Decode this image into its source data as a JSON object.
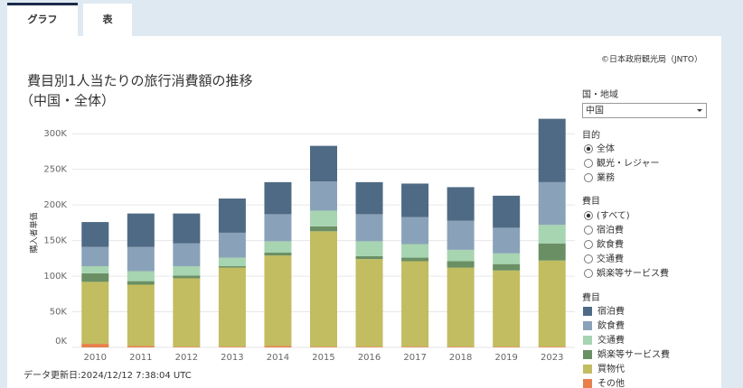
{
  "tabs": [
    "グラフ",
    "表"
  ],
  "copyright": "©日本政府観光局（JNTO）",
  "updated": "データ更新日:2024/12/12 7:38:04 UTC",
  "filters": {
    "region": {
      "label": "国・地域",
      "selected": "中国"
    },
    "purpose": {
      "label": "目的",
      "options": [
        "全体",
        "観光・レジャー",
        "業務"
      ],
      "selected_index": 0
    },
    "item": {
      "label": "費目",
      "options": [
        "(すべて)",
        "宿泊費",
        "飲食費",
        "交通費",
        "娯楽等サービス費",
        "買物代"
      ],
      "selected_index": 0
    }
  },
  "legend_title": "費目",
  "chart_data": {
    "type": "bar",
    "stacked": true,
    "title": "費目別1人当たりの旅行消費額の推移",
    "subtitle": "（中国・全体）",
    "y_label": "購入者単価",
    "categories": [
      "2010",
      "2011",
      "2012",
      "2013",
      "2014",
      "2015",
      "2016",
      "2017",
      "2018",
      "2019",
      "2023"
    ],
    "ylim": [
      0,
      318000
    ],
    "yticks": [
      {
        "value": 0,
        "label": "0K"
      },
      {
        "value": 50000,
        "label": "50K"
      },
      {
        "value": 100000,
        "label": "100K"
      },
      {
        "value": 150000,
        "label": "150K"
      },
      {
        "value": 200000,
        "label": "200K"
      },
      {
        "value": 250000,
        "label": "250K"
      },
      {
        "value": 300000,
        "label": "300K"
      }
    ],
    "grid": true,
    "series": [
      {
        "name": "宿泊費",
        "color": "#4f6a84",
        "values": [
          35000,
          47000,
          42000,
          48000,
          45000,
          50000,
          45000,
          47000,
          47000,
          45000,
          89000
        ]
      },
      {
        "name": "飲食費",
        "color": "#8aa2b9",
        "values": [
          27000,
          34000,
          32000,
          35000,
          38000,
          41000,
          38000,
          38000,
          41000,
          36000,
          60000
        ]
      },
      {
        "name": "交通費",
        "color": "#a7d4b1",
        "values": [
          10000,
          14000,
          13000,
          12000,
          16000,
          22000,
          21000,
          19000,
          16000,
          15000,
          26000
        ]
      },
      {
        "name": "娯楽等サービス費",
        "color": "#6b8f64",
        "values": [
          12000,
          5000,
          4000,
          2000,
          4000,
          7000,
          4000,
          5000,
          9000,
          9000,
          24000
        ]
      },
      {
        "name": "買物代",
        "color": "#c2bd60",
        "values": [
          87000,
          86000,
          96000,
          111000,
          127000,
          162000,
          123000,
          120000,
          111000,
          107000,
          121000
        ]
      },
      {
        "name": "その他",
        "color": "#e8804e",
        "values": [
          5000,
          2000,
          1000,
          1000,
          2000,
          1000,
          1000,
          1000,
          1000,
          1000,
          1000
        ]
      }
    ]
  }
}
